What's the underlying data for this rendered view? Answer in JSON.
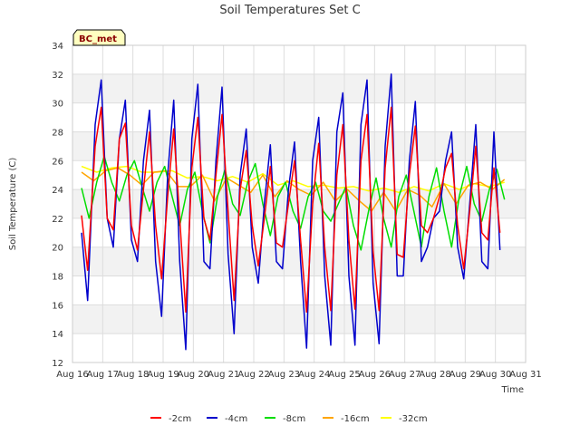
{
  "chart_data": {
    "type": "line",
    "title": "Soil Temperatures Set C",
    "xlabel": "Time",
    "ylabel": "Soil Temperature (C)",
    "site_tag": "BC_met",
    "ylim": [
      12,
      34
    ],
    "yticks": [
      12,
      14,
      16,
      18,
      20,
      22,
      24,
      26,
      28,
      30,
      32,
      34
    ],
    "xlim": [
      16,
      31
    ],
    "xticks": [
      {
        "x": 16,
        "label": "Aug 16"
      },
      {
        "x": 17,
        "label": "Aug 17"
      },
      {
        "x": 18,
        "label": "Aug 18"
      },
      {
        "x": 19,
        "label": "Aug 19"
      },
      {
        "x": 20,
        "label": "Aug 20"
      },
      {
        "x": 21,
        "label": "Aug 21"
      },
      {
        "x": 22,
        "label": "Aug 22"
      },
      {
        "x": 23,
        "label": "Aug 23"
      },
      {
        "x": 24,
        "label": "Aug 24"
      },
      {
        "x": 25,
        "label": "Aug 25"
      },
      {
        "x": 26,
        "label": "Aug 26"
      },
      {
        "x": 27,
        "label": "Aug 27"
      },
      {
        "x": 28,
        "label": "Aug 28"
      },
      {
        "x": 29,
        "label": "Aug 29"
      },
      {
        "x": 30,
        "label": "Aug 30"
      },
      {
        "x": 31,
        "label": "Aug 31"
      }
    ],
    "grid": true,
    "legend_position": "bottom",
    "series": [
      {
        "name": "-2cm",
        "color": "#ff0000",
        "x": [
          16.3,
          16.5,
          16.75,
          16.95,
          17.15,
          17.35,
          17.55,
          17.75,
          17.95,
          18.15,
          18.35,
          18.55,
          18.75,
          18.95,
          19.15,
          19.35,
          19.55,
          19.75,
          19.95,
          20.15,
          20.35,
          20.55,
          20.75,
          20.95,
          21.15,
          21.35,
          21.55,
          21.75,
          21.95,
          22.15,
          22.35,
          22.55,
          22.75,
          22.95,
          23.15,
          23.35,
          23.55,
          23.75,
          23.95,
          24.15,
          24.35,
          24.55,
          24.75,
          24.95,
          25.15,
          25.35,
          25.55,
          25.75,
          25.95,
          26.15,
          26.35,
          26.55,
          26.75,
          26.95,
          27.15,
          27.35,
          27.55,
          27.75,
          27.95,
          28.15,
          28.35,
          28.55,
          28.75,
          28.95,
          29.15,
          29.35,
          29.55,
          29.75,
          29.95,
          30.15
        ],
        "y": [
          22.2,
          18.4,
          27.0,
          29.7,
          22.0,
          21.2,
          27.5,
          28.6,
          21.5,
          19.8,
          24.0,
          28.0,
          21.5,
          17.8,
          23.5,
          28.2,
          22.0,
          15.5,
          25.5,
          29.0,
          22.0,
          20.5,
          25.0,
          29.2,
          22.5,
          16.3,
          24.0,
          26.7,
          21.5,
          18.7,
          22.0,
          25.6,
          20.3,
          20.0,
          23.0,
          26.0,
          20.5,
          15.5,
          23.0,
          27.2,
          20.0,
          15.6,
          25.0,
          28.5,
          20.5,
          15.7,
          26.0,
          29.2,
          19.7,
          15.6,
          25.5,
          29.7,
          19.5,
          19.3,
          25.0,
          28.4,
          21.5,
          21.0,
          22.0,
          23.5,
          25.5,
          26.5,
          21.5,
          18.5,
          22.5,
          27.0,
          21.0,
          20.5,
          25.5,
          21.0
        ]
      },
      {
        "name": "-4cm",
        "color": "#0000cc",
        "x": [
          16.3,
          16.5,
          16.75,
          16.95,
          17.15,
          17.35,
          17.55,
          17.75,
          17.95,
          18.15,
          18.35,
          18.55,
          18.75,
          18.95,
          19.15,
          19.35,
          19.55,
          19.75,
          19.95,
          20.15,
          20.35,
          20.55,
          20.75,
          20.95,
          21.15,
          21.35,
          21.55,
          21.75,
          21.95,
          22.15,
          22.35,
          22.55,
          22.75,
          22.95,
          23.15,
          23.35,
          23.55,
          23.75,
          23.95,
          24.15,
          24.35,
          24.55,
          24.75,
          24.95,
          25.15,
          25.35,
          25.55,
          25.75,
          25.95,
          26.15,
          26.35,
          26.55,
          26.75,
          26.95,
          27.15,
          27.35,
          27.55,
          27.75,
          27.95,
          28.15,
          28.35,
          28.55,
          28.75,
          28.95,
          29.15,
          29.35,
          29.55,
          29.75,
          29.95,
          30.15
        ],
        "y": [
          21.0,
          16.3,
          28.5,
          31.6,
          22.0,
          20.0,
          27.5,
          30.2,
          20.5,
          19.0,
          26.0,
          29.5,
          19.0,
          15.2,
          25.0,
          30.2,
          19.0,
          12.9,
          27.5,
          31.3,
          19.0,
          18.5,
          26.0,
          31.1,
          19.5,
          14.0,
          25.0,
          28.2,
          20.0,
          17.5,
          23.0,
          27.1,
          19.0,
          18.5,
          24.0,
          27.3,
          19.0,
          13.0,
          26.0,
          29.0,
          18.0,
          13.2,
          28.0,
          30.7,
          18.0,
          13.2,
          28.5,
          31.6,
          17.5,
          13.3,
          27.0,
          32.0,
          18.0,
          18.0,
          26.0,
          30.1,
          19.0,
          20.0,
          22.0,
          22.5,
          26.0,
          28.0,
          20.0,
          17.8,
          23.0,
          28.5,
          19.0,
          18.5,
          28.0,
          19.8
        ]
      },
      {
        "name": "-8cm",
        "color": "#00dd00",
        "x": [
          16.3,
          16.55,
          16.8,
          17.05,
          17.3,
          17.55,
          17.8,
          18.05,
          18.3,
          18.55,
          18.8,
          19.05,
          19.3,
          19.55,
          19.8,
          20.05,
          20.3,
          20.55,
          20.8,
          21.05,
          21.3,
          21.55,
          21.8,
          22.05,
          22.3,
          22.55,
          22.8,
          23.05,
          23.3,
          23.55,
          23.8,
          24.05,
          24.3,
          24.55,
          24.8,
          25.05,
          25.3,
          25.55,
          25.8,
          26.05,
          26.3,
          26.55,
          26.8,
          27.05,
          27.3,
          27.55,
          27.8,
          28.05,
          28.3,
          28.55,
          28.8,
          29.05,
          29.3,
          29.55,
          29.8,
          30.05,
          30.3
        ],
        "y": [
          24.1,
          22.0,
          24.5,
          26.3,
          24.5,
          23.2,
          25.0,
          26.0,
          24.2,
          22.5,
          24.5,
          25.6,
          23.5,
          21.5,
          24.0,
          25.2,
          22.5,
          20.3,
          23.5,
          25.4,
          23.0,
          22.2,
          24.5,
          25.8,
          23.0,
          20.8,
          23.5,
          24.5,
          22.5,
          21.3,
          23.5,
          24.5,
          22.5,
          21.8,
          23.0,
          24.2,
          21.5,
          19.8,
          22.5,
          24.8,
          22.0,
          20.0,
          23.5,
          25.0,
          22.5,
          20.0,
          23.5,
          25.5,
          22.5,
          20.0,
          23.5,
          25.6,
          23.0,
          21.8,
          24.0,
          25.4,
          23.3
        ]
      },
      {
        "name": "-16cm",
        "color": "#ffa500",
        "x": [
          16.3,
          16.7,
          17.1,
          17.5,
          17.9,
          18.3,
          18.7,
          19.1,
          19.5,
          19.9,
          20.3,
          20.7,
          21.1,
          21.5,
          21.9,
          22.3,
          22.7,
          23.1,
          23.5,
          23.9,
          24.3,
          24.7,
          25.1,
          25.5,
          25.9,
          26.3,
          26.7,
          27.1,
          27.5,
          27.9,
          28.3,
          28.7,
          29.1,
          29.5,
          29.9,
          30.3
        ],
        "y": [
          25.2,
          24.6,
          25.3,
          25.5,
          25.0,
          24.3,
          25.2,
          25.3,
          24.2,
          24.2,
          25.0,
          23.2,
          24.8,
          24.3,
          23.8,
          25.0,
          23.5,
          24.6,
          24.0,
          23.6,
          24.5,
          23.2,
          24.0,
          23.2,
          22.5,
          23.8,
          22.5,
          24.0,
          23.6,
          22.8,
          24.4,
          23.0,
          24.3,
          24.5,
          24.0,
          24.7
        ]
      },
      {
        "name": "-32cm",
        "color": "#ffff00",
        "x": [
          16.3,
          16.8,
          17.3,
          17.8,
          18.3,
          18.8,
          19.3,
          19.8,
          20.3,
          20.8,
          21.3,
          21.8,
          22.3,
          22.8,
          23.3,
          23.8,
          24.3,
          24.8,
          25.3,
          25.8,
          26.3,
          26.8,
          27.3,
          27.8,
          28.3,
          28.8,
          29.3,
          29.8,
          30.3
        ],
        "y": [
          25.6,
          25.2,
          25.5,
          25.6,
          25.2,
          25.2,
          25.3,
          24.8,
          24.9,
          24.6,
          24.9,
          24.5,
          25.1,
          24.3,
          24.6,
          24.2,
          24.3,
          24.1,
          24.2,
          23.9,
          24.1,
          23.8,
          24.2,
          23.9,
          24.4,
          24.0,
          24.4,
          24.2,
          24.5
        ]
      }
    ]
  }
}
